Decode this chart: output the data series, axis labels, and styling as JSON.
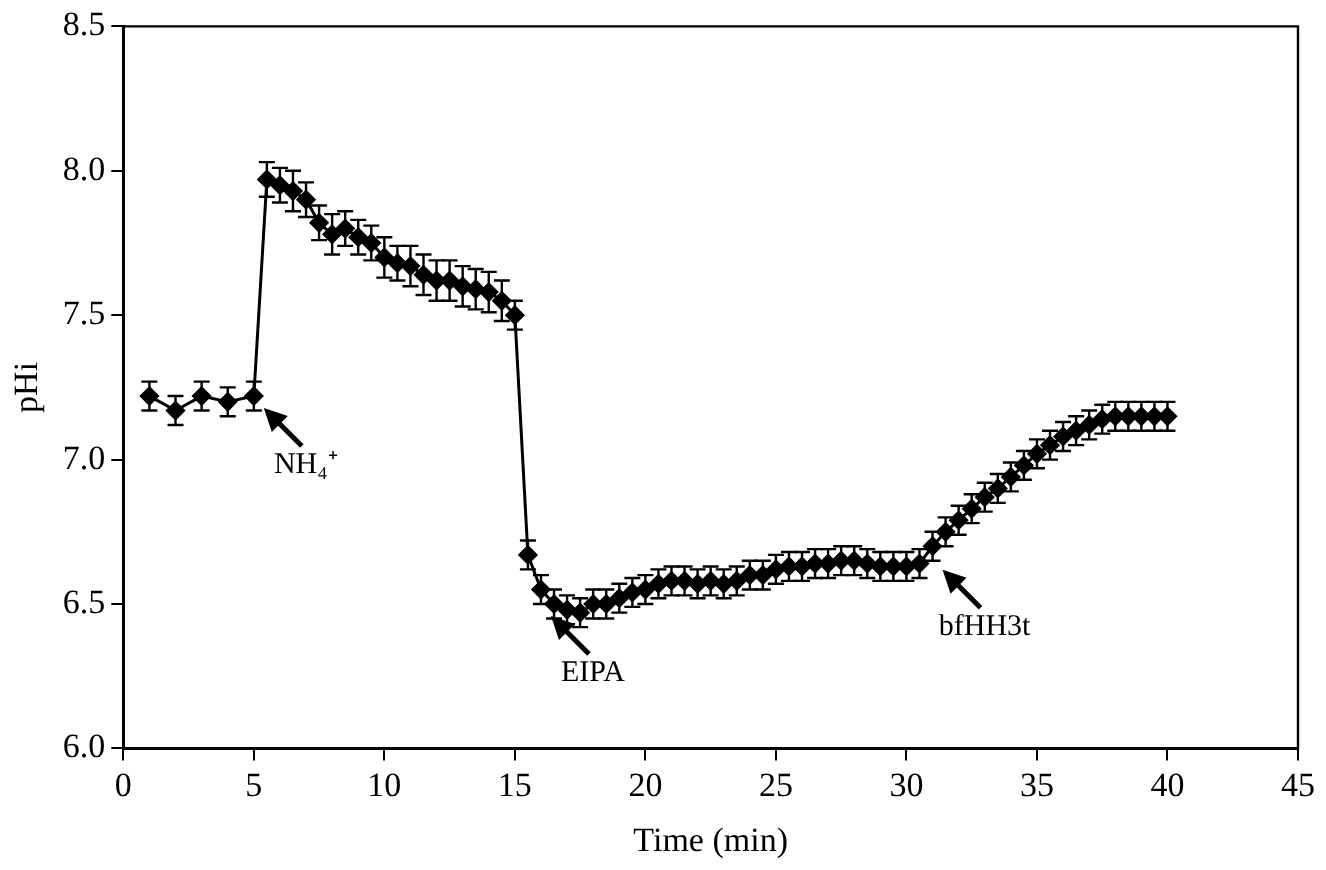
{
  "chart_data": {
    "type": "line",
    "xlabel": "Time (min)",
    "ylabel": "pHi",
    "x": [
      1,
      2,
      3,
      4,
      5,
      5.5,
      6,
      6.5,
      7,
      7.5,
      8,
      8.5,
      9,
      9.5,
      10,
      10.5,
      11,
      11.5,
      12,
      12.5,
      13,
      13.5,
      14,
      14.5,
      15,
      15.5,
      16,
      16.5,
      17,
      17.5,
      18,
      18.5,
      19,
      19.5,
      20,
      20.5,
      21,
      21.5,
      22,
      22.5,
      23,
      23.5,
      24,
      24.5,
      25,
      25.5,
      26,
      26.5,
      27,
      27.5,
      28,
      28.5,
      29,
      29.5,
      30,
      30.5,
      31,
      31.5,
      32,
      32.5,
      33,
      33.5,
      34,
      34.5,
      35,
      35.5,
      36,
      36.5,
      37,
      37.5,
      38,
      38.5,
      39,
      39.5,
      40
    ],
    "series": [
      {
        "color": "#000000",
        "values": [
          7.22,
          7.17,
          7.22,
          7.2,
          7.22,
          7.97,
          7.95,
          7.93,
          7.9,
          7.82,
          7.78,
          7.8,
          7.77,
          7.75,
          7.7,
          7.68,
          7.67,
          7.64,
          7.62,
          7.62,
          7.6,
          7.59,
          7.58,
          7.55,
          7.5,
          6.67,
          6.55,
          6.5,
          6.48,
          6.47,
          6.5,
          6.5,
          6.52,
          6.54,
          6.55,
          6.57,
          6.58,
          6.58,
          6.57,
          6.58,
          6.57,
          6.58,
          6.6,
          6.6,
          6.62,
          6.63,
          6.63,
          6.64,
          6.64,
          6.65,
          6.65,
          6.64,
          6.63,
          6.63,
          6.63,
          6.64,
          6.7,
          6.75,
          6.79,
          6.83,
          6.87,
          6.9,
          6.94,
          6.98,
          7.02,
          7.05,
          7.08,
          7.1,
          7.12,
          7.14,
          7.15,
          7.15,
          7.15,
          7.15,
          7.15
        ],
        "errors": [
          0.05,
          0.05,
          0.05,
          0.05,
          0.05,
          0.06,
          0.06,
          0.07,
          0.06,
          0.06,
          0.07,
          0.06,
          0.06,
          0.06,
          0.07,
          0.06,
          0.07,
          0.07,
          0.07,
          0.07,
          0.07,
          0.07,
          0.07,
          0.07,
          0.05,
          0.05,
          0.05,
          0.05,
          0.05,
          0.05,
          0.05,
          0.05,
          0.05,
          0.05,
          0.05,
          0.05,
          0.05,
          0.05,
          0.05,
          0.05,
          0.05,
          0.05,
          0.05,
          0.05,
          0.05,
          0.05,
          0.05,
          0.05,
          0.05,
          0.05,
          0.05,
          0.05,
          0.05,
          0.05,
          0.05,
          0.05,
          0.05,
          0.05,
          0.05,
          0.05,
          0.05,
          0.05,
          0.05,
          0.05,
          0.05,
          0.05,
          0.05,
          0.05,
          0.05,
          0.05,
          0.05,
          0.05,
          0.05,
          0.05,
          0.05
        ]
      }
    ],
    "xlim": [
      0,
      45
    ],
    "xticks": [
      0,
      5,
      10,
      15,
      20,
      25,
      30,
      35,
      40,
      45
    ],
    "ylim": [
      6.0,
      8.5
    ],
    "yticks": [
      {
        "value": 6.0,
        "label": "6.0"
      },
      {
        "value": 6.5,
        "label": "6.5"
      },
      {
        "value": 7.0,
        "label": "7.0"
      },
      {
        "value": 7.5,
        "label": "7.5"
      },
      {
        "value": 8.0,
        "label": "8.0"
      },
      {
        "value": 8.5,
        "label": "8.5"
      }
    ],
    "annotations": [
      {
        "text": "NH₄⁺",
        "x": 5,
        "y": 7.22
      },
      {
        "text": "EIPA",
        "x": 16,
        "y": 6.5
      },
      {
        "text": "bfHH3t",
        "x": 31,
        "y": 6.66
      }
    ],
    "marker": "diamond",
    "line_style": "solid",
    "grid": false,
    "legend": false
  }
}
